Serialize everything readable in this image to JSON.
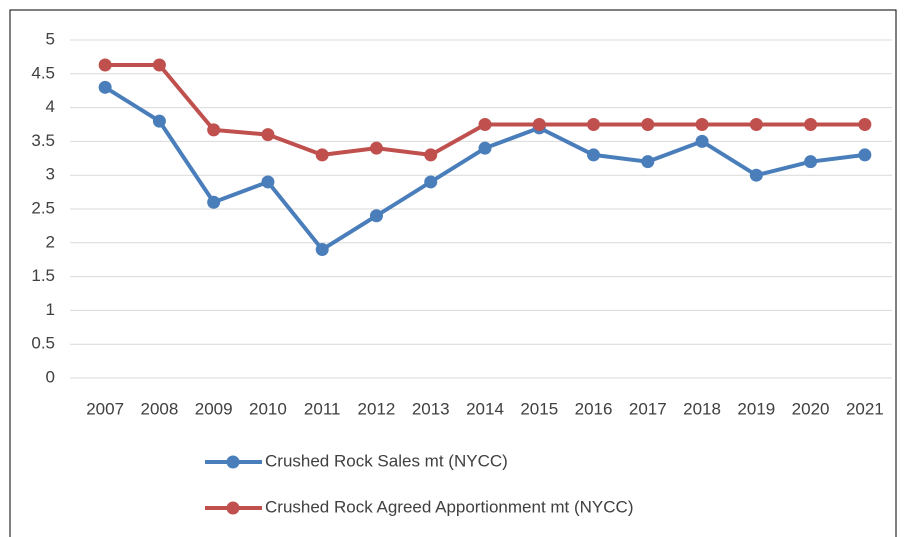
{
  "chart_data": {
    "type": "line",
    "categories": [
      "2007",
      "2008",
      "2009",
      "2010",
      "2011",
      "2012",
      "2013",
      "2014",
      "2015",
      "2016",
      "2017",
      "2018",
      "2019",
      "2020",
      "2021"
    ],
    "series": [
      {
        "name": "Crushed Rock Sales mt (NYCC)",
        "color": "#4a7ebb",
        "values": [
          4.3,
          3.8,
          2.6,
          2.9,
          1.9,
          2.4,
          2.9,
          3.4,
          3.7,
          3.3,
          3.2,
          3.5,
          3.0,
          3.2,
          3.3
        ]
      },
      {
        "name": "Crushed Rock Agreed Apportionment mt (NYCC)",
        "color": "#c0504d",
        "values": [
          4.63,
          4.63,
          3.67,
          3.6,
          3.3,
          3.4,
          3.3,
          3.75,
          3.75,
          3.75,
          3.75,
          3.75,
          3.75,
          3.75,
          3.75
        ]
      }
    ],
    "ylim": [
      0,
      5
    ],
    "yticks": [
      0,
      0.5,
      1,
      1.5,
      2,
      2.5,
      3,
      3.5,
      4,
      4.5,
      5
    ],
    "grid": true,
    "legend": "bottom"
  }
}
